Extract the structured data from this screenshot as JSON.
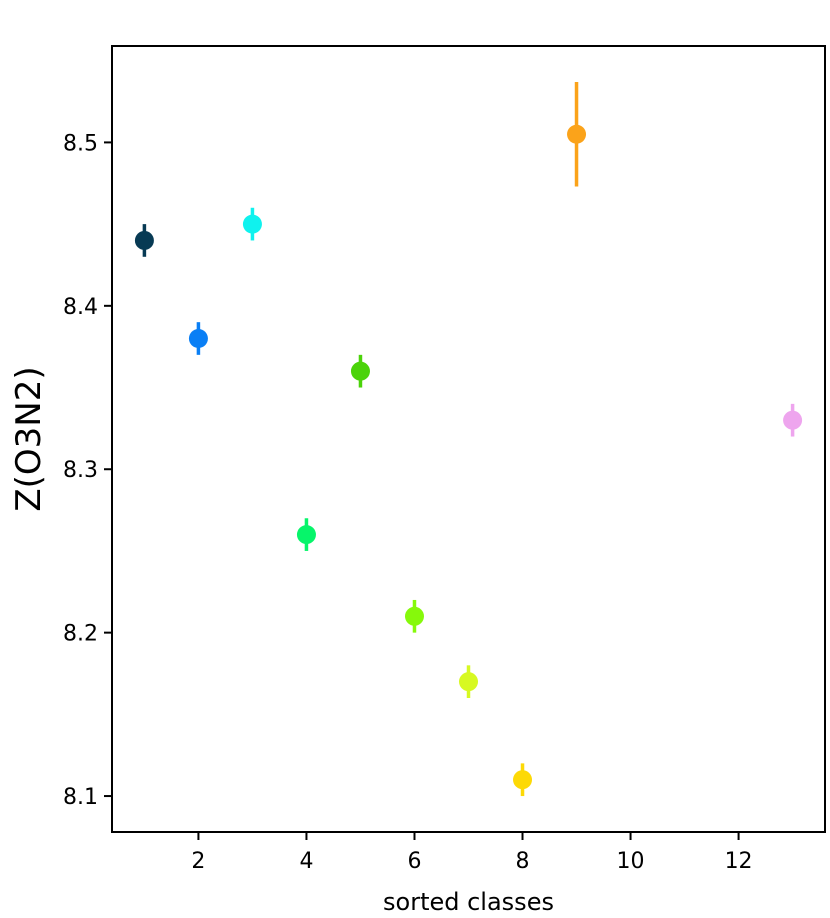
{
  "chart_data": {
    "type": "scatter",
    "title": "",
    "xlabel": "sorted classes",
    "ylabel": "Z(O3N2)",
    "xlim": [
      0.4,
      13.6
    ],
    "ylim": [
      8.078,
      8.559
    ],
    "xticks": [
      2,
      4,
      6,
      8,
      10,
      12
    ],
    "yticks": [
      8.1,
      8.2,
      8.3,
      8.4,
      8.5
    ],
    "xtick_labels": [
      "2",
      "4",
      "6",
      "8",
      "10",
      "12"
    ],
    "ytick_labels": [
      "8.1",
      "8.2",
      "8.3",
      "8.4",
      "8.5"
    ],
    "grid": false,
    "points": [
      {
        "x": 1,
        "y": 8.44,
        "yerr": 0.01,
        "color": "#073a54"
      },
      {
        "x": 2,
        "y": 8.38,
        "yerr": 0.01,
        "color": "#0a7ff5"
      },
      {
        "x": 3,
        "y": 8.45,
        "yerr": 0.01,
        "color": "#0ff2ee"
      },
      {
        "x": 4,
        "y": 8.26,
        "yerr": 0.01,
        "color": "#06f56a"
      },
      {
        "x": 5,
        "y": 8.36,
        "yerr": 0.01,
        "color": "#4bd30a"
      },
      {
        "x": 6,
        "y": 8.21,
        "yerr": 0.01,
        "color": "#86f90b"
      },
      {
        "x": 7,
        "y": 8.17,
        "yerr": 0.01,
        "color": "#d7f922"
      },
      {
        "x": 8,
        "y": 8.11,
        "yerr": 0.01,
        "color": "#fdd906"
      },
      {
        "x": 9,
        "y": 8.505,
        "yerr": 0.032,
        "color": "#fba31a"
      },
      {
        "x": 13,
        "y": 8.33,
        "yerr": 0.01,
        "color": "#eea5ee"
      }
    ]
  }
}
